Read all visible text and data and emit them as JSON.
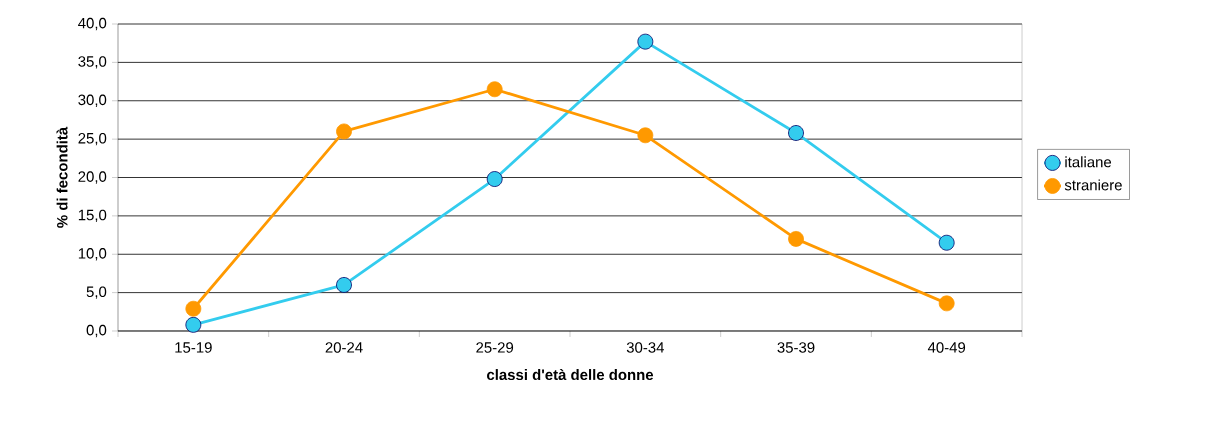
{
  "chart_data": {
    "type": "line",
    "xlabel": "classi d'età delle donne",
    "ylabel": "% di fecondità",
    "categories": [
      "15-19",
      "20-24",
      "25-29",
      "30-34",
      "35-39",
      "40-49"
    ],
    "series": [
      {
        "name": "italiane",
        "color": "#33ccee",
        "values": [
          0.8,
          6.0,
          19.8,
          37.7,
          25.8,
          11.5
        ]
      },
      {
        "name": "straniere",
        "color": "#ff9900",
        "values": [
          2.9,
          26.0,
          31.5,
          25.5,
          12.0,
          3.6
        ]
      }
    ],
    "ylim": [
      0,
      40
    ],
    "yticks": [
      {
        "value": 0,
        "label": "0,0"
      },
      {
        "value": 5,
        "label": "5,0"
      },
      {
        "value": 10,
        "label": "10,0"
      },
      {
        "value": 15,
        "label": "15,0"
      },
      {
        "value": 20,
        "label": "20,0"
      },
      {
        "value": 25,
        "label": "25,0"
      },
      {
        "value": 30,
        "label": "30,0"
      },
      {
        "value": 35,
        "label": "35,0"
      },
      {
        "value": 40,
        "label": "40,0"
      }
    ],
    "grid": "y",
    "legend": "right",
    "marker": "circle",
    "line_style": "solid"
  }
}
